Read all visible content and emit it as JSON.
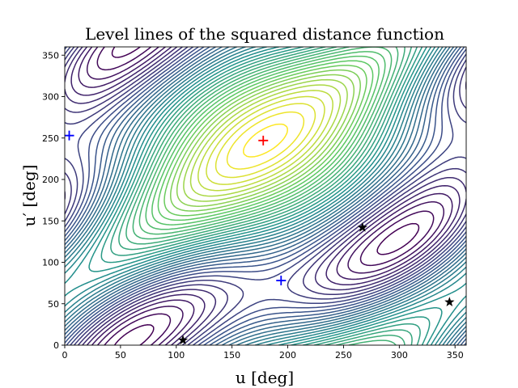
{
  "chart_data": {
    "type": "contour",
    "title": "Level lines of the squared distance function",
    "xlabel": "u [deg]",
    "ylabel": "u′ [deg]",
    "xlim": [
      0,
      360
    ],
    "ylim": [
      0,
      360
    ],
    "xticks": [
      "0",
      "50",
      "100",
      "150",
      "200",
      "250",
      "300",
      "350"
    ],
    "yticks": [
      "0",
      "50",
      "100",
      "150",
      "200",
      "250",
      "300",
      "350"
    ],
    "colormap": [
      "#440154",
      "#3b528b",
      "#21918c",
      "#5ec962",
      "#fde725"
    ],
    "maximum": {
      "x": 180,
      "y": 247
    },
    "markers": [
      {
        "kind": "plus",
        "color": "#ff0000",
        "x": 178,
        "y": 247
      },
      {
        "kind": "plus",
        "color": "#0000ff",
        "x": 4,
        "y": 253
      },
      {
        "kind": "plus",
        "color": "#0000ff",
        "x": 194,
        "y": 78
      },
      {
        "kind": "star",
        "color": "#000000",
        "x": 106,
        "y": 6
      },
      {
        "kind": "star",
        "color": "#000000",
        "x": 267,
        "y": 142
      },
      {
        "kind": "star",
        "color": "#000000",
        "x": 345,
        "y": 52
      }
    ],
    "grid": false,
    "legend": "none"
  }
}
